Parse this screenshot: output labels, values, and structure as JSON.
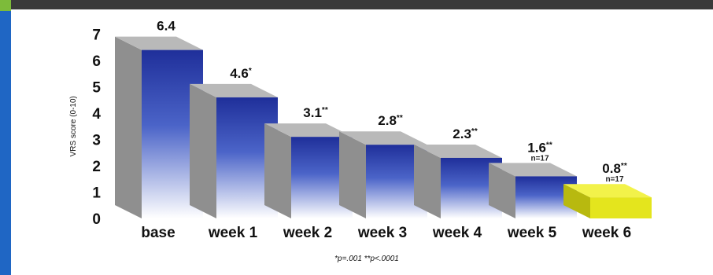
{
  "chart_data": {
    "type": "bar",
    "categories": [
      "base",
      "week 1",
      "week 2",
      "week 3",
      "week 4",
      "week 5",
      "week 6"
    ],
    "values": [
      6.4,
      4.6,
      3.1,
      2.8,
      2.3,
      1.6,
      0.8
    ],
    "data_labels": [
      "6.4",
      "4.6*",
      "3.1**",
      "2.8**",
      "2.3**",
      "1.6**",
      "0.8**"
    ],
    "sub_labels": [
      "",
      "",
      "",
      "",
      "",
      "n=17",
      "n=17"
    ],
    "bar_colors": [
      "blue",
      "blue",
      "blue",
      "blue",
      "blue",
      "blue",
      "yellow"
    ],
    "ylabel": "VRS score (0-10)",
    "yticks": [
      0,
      1,
      2,
      3,
      4,
      5,
      6,
      7
    ],
    "ylim": [
      0,
      7
    ],
    "footnote": "*p=.001     **p<.0001",
    "grid": false,
    "colors": {
      "blue_top": "#1f2f9a",
      "blue_bottom": "#ffffff",
      "side_gray": "#8f8f8f",
      "top_gray": "#b9b9b9",
      "yellow_front": "#e4e51d",
      "yellow_side": "#b8b90f",
      "yellow_top": "#f2f24a",
      "frame_dark": "#3a3a3a",
      "left_bar": "#1f66c4"
    }
  }
}
